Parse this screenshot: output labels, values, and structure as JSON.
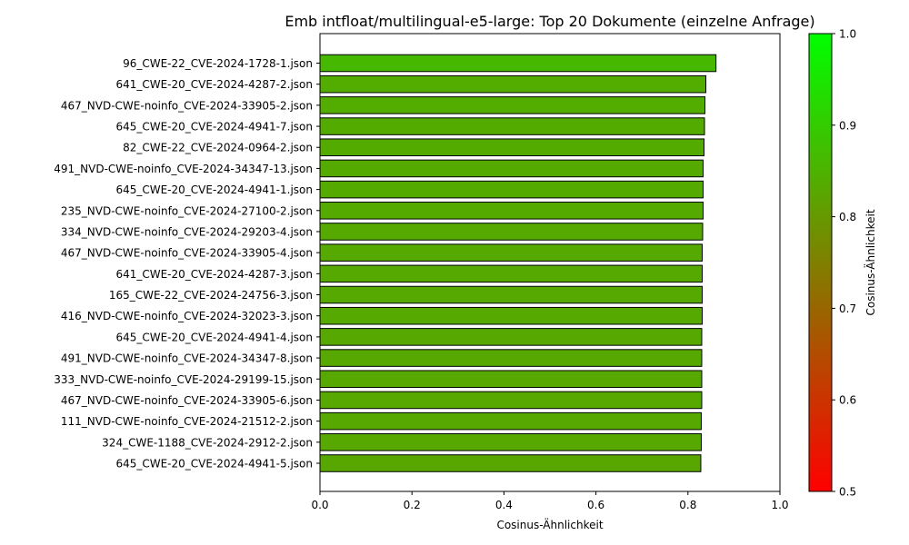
{
  "chart_data": {
    "type": "bar",
    "orientation": "horizontal",
    "title": "Emb intfloat/multilingual-e5-large: Top 20 Dokumente (einzelne Anfrage)",
    "xlabel": "Cosinus-Ähnlichkeit",
    "ylabel": "",
    "xlim": [
      0.0,
      1.0
    ],
    "xticks": [
      "0.0",
      "0.2",
      "0.4",
      "0.6",
      "0.8",
      "1.0"
    ],
    "categories": [
      "96_CWE-22_CVE-2024-1728-1.json",
      "641_CWE-20_CVE-2024-4287-2.json",
      "467_NVD-CWE-noinfo_CVE-2024-33905-2.json",
      "645_CWE-20_CVE-2024-4941-7.json",
      "82_CWE-22_CVE-2024-0964-2.json",
      "491_NVD-CWE-noinfo_CVE-2024-34347-13.json",
      "645_CWE-20_CVE-2024-4941-1.json",
      "235_NVD-CWE-noinfo_CVE-2024-27100-2.json",
      "334_NVD-CWE-noinfo_CVE-2024-29203-4.json",
      "467_NVD-CWE-noinfo_CVE-2024-33905-4.json",
      "641_CWE-20_CVE-2024-4287-3.json",
      "165_CWE-22_CVE-2024-24756-3.json",
      "416_NVD-CWE-noinfo_CVE-2024-32023-3.json",
      "645_CWE-20_CVE-2024-4941-4.json",
      "491_NVD-CWE-noinfo_CVE-2024-34347-8.json",
      "333_NVD-CWE-noinfo_CVE-2024-29199-15.json",
      "467_NVD-CWE-noinfo_CVE-2024-33905-6.json",
      "111_NVD-CWE-noinfo_CVE-2024-21512-2.json",
      "324_CWE-1188_CVE-2024-2912-2.json",
      "645_CWE-20_CVE-2024-4941-5.json"
    ],
    "values": [
      0.861,
      0.839,
      0.837,
      0.836,
      0.835,
      0.833,
      0.833,
      0.833,
      0.832,
      0.831,
      0.831,
      0.831,
      0.831,
      0.83,
      0.83,
      0.83,
      0.83,
      0.829,
      0.829,
      0.828
    ],
    "bar_edge_color": "#000000",
    "colorbar": {
      "label": "Cosinus-Ähnlichkeit",
      "range": [
        0.5,
        1.0
      ],
      "ticks": [
        "0.5",
        "0.6",
        "0.7",
        "0.8",
        "0.9",
        "1.0"
      ],
      "color_low": "#ff0000",
      "color_high": "#00ff00"
    }
  }
}
